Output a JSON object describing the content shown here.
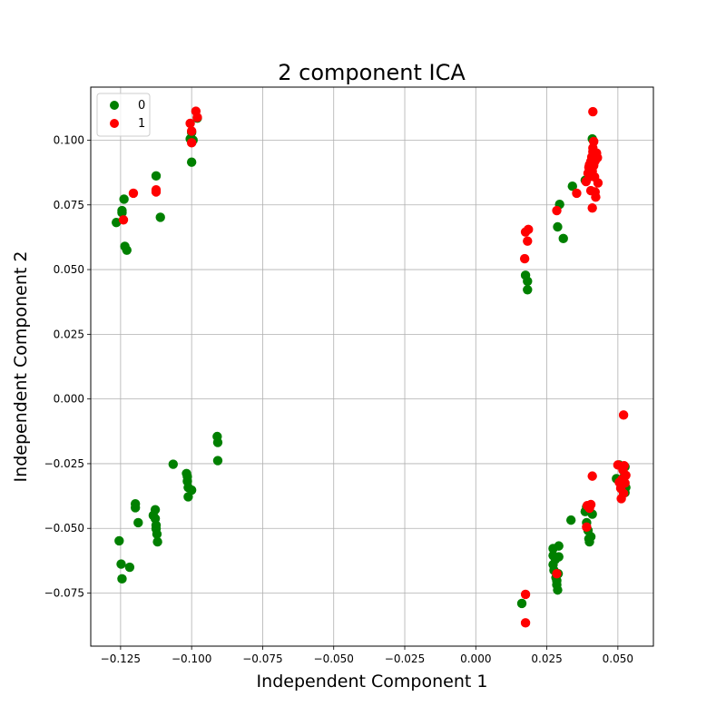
{
  "chart_data": {
    "type": "scatter",
    "title": "2 component ICA",
    "xlabel": "Independent Component 1",
    "ylabel": "Independent Component 2",
    "xlim": [
      -0.1355,
      0.0625
    ],
    "ylim": [
      -0.0955,
      0.1205
    ],
    "xticks": [
      -0.125,
      -0.1,
      -0.075,
      -0.05,
      -0.025,
      0.0,
      0.025,
      0.05
    ],
    "xtick_labels": [
      "−0.125",
      "−0.100",
      "−0.075",
      "−0.050",
      "−0.025",
      "0.000",
      "0.025",
      "0.050"
    ],
    "yticks": [
      -0.075,
      -0.05,
      -0.025,
      0.0,
      0.025,
      0.05,
      0.075,
      0.1
    ],
    "ytick_labels": [
      "−0.075",
      "−0.050",
      "−0.025",
      "0.000",
      "0.025",
      "0.050",
      "0.075",
      "0.100"
    ],
    "grid": true,
    "legend": {
      "placement": "top-left"
    },
    "series": [
      {
        "name": "0",
        "color": "#008000",
        "points": [
          [
            -0.1265,
            0.0682
          ],
          [
            -0.1245,
            0.072
          ],
          [
            -0.1245,
            0.0728
          ],
          [
            -0.1238,
            0.0772
          ],
          [
            -0.1235,
            0.059
          ],
          [
            -0.1228,
            0.0575
          ],
          [
            -0.1125,
            0.0862
          ],
          [
            -0.111,
            0.0702
          ],
          [
            -0.1005,
            0.1005
          ],
          [
            -0.1,
            0.103
          ],
          [
            -0.1,
            0.0915
          ],
          [
            -0.0995,
            0.1
          ],
          [
            -0.098,
            0.1085
          ],
          [
            -0.1255,
            -0.0548
          ],
          [
            -0.1248,
            -0.0638
          ],
          [
            -0.1245,
            -0.0695
          ],
          [
            -0.1218,
            -0.065
          ],
          [
            -0.1198,
            -0.0405
          ],
          [
            -0.1198,
            -0.042
          ],
          [
            -0.1188,
            -0.0478
          ],
          [
            -0.1135,
            -0.045
          ],
          [
            -0.1128,
            -0.0428
          ],
          [
            -0.1128,
            -0.0462
          ],
          [
            -0.1125,
            -0.0488
          ],
          [
            -0.1125,
            -0.0502
          ],
          [
            -0.1122,
            -0.0522
          ],
          [
            -0.112,
            -0.0552
          ],
          [
            -0.1065,
            -0.0252
          ],
          [
            -0.1018,
            -0.0288
          ],
          [
            -0.1015,
            -0.03
          ],
          [
            -0.1015,
            -0.0318
          ],
          [
            -0.1012,
            -0.0342
          ],
          [
            -0.1012,
            -0.0378
          ],
          [
            -0.1,
            -0.0352
          ],
          [
            -0.091,
            -0.0145
          ],
          [
            -0.0908,
            -0.0168
          ],
          [
            -0.0908,
            -0.0238
          ],
          [
            0.0175,
            0.0478
          ],
          [
            0.0182,
            0.0455
          ],
          [
            0.0182,
            0.0422
          ],
          [
            0.0288,
            0.0665
          ],
          [
            0.0295,
            0.0752
          ],
          [
            0.0308,
            0.062
          ],
          [
            0.034,
            0.0822
          ],
          [
            0.0385,
            0.0845
          ],
          [
            0.041,
            0.1005
          ],
          [
            0.0162,
            -0.079
          ],
          [
            0.0272,
            -0.0578
          ],
          [
            0.0272,
            -0.0605
          ],
          [
            0.0272,
            -0.064
          ],
          [
            0.0275,
            -0.0662
          ],
          [
            0.028,
            -0.062
          ],
          [
            0.0282,
            -0.069
          ],
          [
            0.0285,
            -0.0702
          ],
          [
            0.0285,
            -0.0718
          ],
          [
            0.0288,
            -0.0738
          ],
          [
            0.029,
            -0.0675
          ],
          [
            0.0292,
            -0.0568
          ],
          [
            0.0292,
            -0.061
          ],
          [
            0.0335,
            -0.0468
          ],
          [
            0.0385,
            -0.0435
          ],
          [
            0.039,
            -0.0418
          ],
          [
            0.039,
            -0.0478
          ],
          [
            0.0395,
            -0.0508
          ],
          [
            0.0398,
            -0.054
          ],
          [
            0.04,
            -0.0552
          ],
          [
            0.0405,
            -0.0532
          ],
          [
            0.041,
            -0.0445
          ],
          [
            0.0495,
            -0.0308
          ],
          [
            0.0505,
            -0.0255
          ],
          [
            0.0512,
            -0.033
          ],
          [
            0.0518,
            -0.0355
          ],
          [
            0.0522,
            -0.03
          ],
          [
            0.0525,
            -0.0262
          ],
          [
            0.0525,
            -0.0362
          ],
          [
            0.0528,
            -0.0342
          ]
        ]
      },
      {
        "name": "1",
        "color": "#ff0000",
        "points": [
          [
            -0.124,
            0.0692
          ],
          [
            -0.1205,
            0.0795
          ],
          [
            -0.1125,
            0.0808
          ],
          [
            -0.1125,
            0.08
          ],
          [
            -0.1005,
            0.1065
          ],
          [
            -0.1,
            0.1035
          ],
          [
            -0.1,
            0.099
          ],
          [
            -0.0985,
            0.1112
          ],
          [
            -0.098,
            0.1088
          ],
          [
            0.0172,
            0.0542
          ],
          [
            0.0175,
            0.0645
          ],
          [
            0.0182,
            0.061
          ],
          [
            0.0185,
            0.0655
          ],
          [
            0.0285,
            0.0728
          ],
          [
            0.0355,
            0.0795
          ],
          [
            0.0388,
            0.084
          ],
          [
            0.0395,
            0.0872
          ],
          [
            0.0398,
            0.0895
          ],
          [
            0.04,
            0.0905
          ],
          [
            0.0402,
            0.086
          ],
          [
            0.0405,
            0.0805
          ],
          [
            0.0405,
            0.0918
          ],
          [
            0.0408,
            0.0935
          ],
          [
            0.041,
            0.0738
          ],
          [
            0.041,
            0.088
          ],
          [
            0.0412,
            0.0955
          ],
          [
            0.0412,
            0.097
          ],
          [
            0.0412,
            0.111
          ],
          [
            0.0415,
            0.0995
          ],
          [
            0.0415,
            0.0902
          ],
          [
            0.0418,
            0.0858
          ],
          [
            0.042,
            0.08
          ],
          [
            0.042,
            0.092
          ],
          [
            0.0422,
            0.078
          ],
          [
            0.0425,
            0.095
          ],
          [
            0.0428,
            0.0932
          ],
          [
            0.043,
            0.0835
          ],
          [
            0.0175,
            -0.0755
          ],
          [
            0.0175,
            -0.0865
          ],
          [
            0.0285,
            -0.0675
          ],
          [
            0.039,
            -0.0495
          ],
          [
            0.0392,
            -0.0412
          ],
          [
            0.04,
            -0.0422
          ],
          [
            0.0405,
            -0.0408
          ],
          [
            0.041,
            -0.0298
          ],
          [
            0.05,
            -0.0255
          ],
          [
            0.0505,
            -0.0322
          ],
          [
            0.051,
            -0.0345
          ],
          [
            0.0512,
            -0.0385
          ],
          [
            0.0515,
            -0.031
          ],
          [
            0.0518,
            -0.0275
          ],
          [
            0.052,
            -0.0062
          ],
          [
            0.052,
            -0.0365
          ],
          [
            0.0522,
            -0.0258
          ],
          [
            0.0525,
            -0.0325
          ],
          [
            0.0528,
            -0.0295
          ]
        ]
      }
    ]
  }
}
